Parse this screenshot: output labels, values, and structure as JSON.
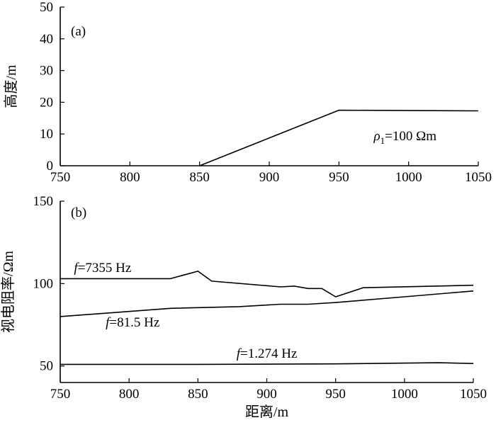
{
  "chart_data": [
    {
      "type": "line",
      "panel_label": "(a)",
      "ylabel": "高度/m",
      "xlim": [
        750,
        1050
      ],
      "ylim": [
        0,
        50
      ],
      "x_ticks": [
        750,
        800,
        850,
        900,
        950,
        1000,
        1050
      ],
      "y_ticks": [
        0,
        10,
        20,
        30,
        40,
        50
      ],
      "series": [
        {
          "x": [
            850,
            950,
            1050
          ],
          "y": [
            0,
            17.5,
            17.3
          ]
        }
      ],
      "annotation": {
        "symbol": "ρ",
        "subscript": "1",
        "text": "=100 Ωm",
        "x": 975,
        "y": 8
      }
    },
    {
      "type": "line",
      "panel_label": "(b)",
      "xlabel": "距离/m",
      "ylabel": "视电阻率/Ωm",
      "xlim": [
        750,
        1050
      ],
      "ylim": [
        40,
        150
      ],
      "x_ticks": [
        750,
        800,
        850,
        900,
        950,
        1000,
        1050
      ],
      "y_ticks": [
        50,
        100,
        150
      ],
      "series": [
        {
          "label": {
            "italic": "f",
            "text": "=7355 Hz",
            "x": 760,
            "y": 107
          },
          "x": [
            750,
            830,
            850,
            860,
            910,
            920,
            930,
            940,
            950,
            970,
            1050
          ],
          "y": [
            103,
            103,
            107.5,
            101.5,
            98,
            98.5,
            97,
            97,
            92,
            97.5,
            99
          ]
        },
        {
          "label": {
            "italic": "f",
            "text": "=81.5 Hz",
            "x": 783,
            "y": 74
          },
          "x": [
            750,
            830,
            880,
            910,
            930,
            950,
            1000,
            1050
          ],
          "y": [
            80,
            85,
            86,
            87.5,
            87.5,
            88.5,
            92,
            95.5
          ]
        },
        {
          "label": {
            "italic": "f",
            "text": "=1.274 Hz",
            "x": 878,
            "y": 55
          },
          "x": [
            750,
            850,
            950,
            1025,
            1050
          ],
          "y": [
            51,
            51,
            51.3,
            52,
            51.5
          ]
        }
      ]
    }
  ]
}
